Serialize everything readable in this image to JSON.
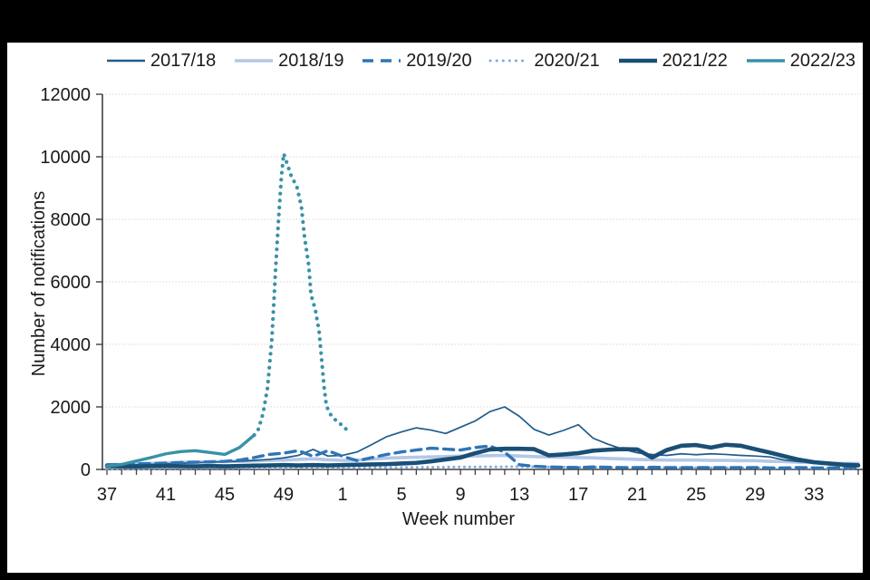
{
  "frame": {
    "color": "#000000"
  },
  "axes": {
    "y": {
      "title": "Number of notifications",
      "min": 0,
      "max": 12000,
      "step": 2000,
      "tick_labels": [
        "0",
        "2000",
        "4000",
        "6000",
        "8000",
        "10000",
        "12000"
      ]
    },
    "x": {
      "title": "Week number",
      "tick_labels": [
        "37",
        "41",
        "45",
        "49",
        "1",
        "5",
        "9",
        "13",
        "17",
        "21",
        "25",
        "29",
        "33"
      ]
    }
  },
  "chart_data": {
    "type": "line",
    "title": "",
    "xlabel": "Week number",
    "ylabel": "Number of notifications",
    "ylim": [
      0,
      12000
    ],
    "grid": "horizontal-dotted",
    "legend_position": "top",
    "x_weeks": [
      37,
      38,
      39,
      40,
      41,
      42,
      43,
      44,
      45,
      46,
      47,
      48,
      49,
      50,
      51,
      52,
      1,
      2,
      3,
      4,
      5,
      6,
      7,
      8,
      9,
      10,
      11,
      12,
      13,
      14,
      15,
      16,
      17,
      18,
      19,
      20,
      21,
      22,
      23,
      24,
      25,
      26,
      27,
      28,
      29,
      30,
      31,
      32,
      33,
      34,
      35,
      36
    ],
    "series": [
      {
        "name": "2017/18",
        "color": "#1f5c8b",
        "style": "solid",
        "width": 1.7,
        "values": [
          130,
          140,
          150,
          160,
          180,
          200,
          210,
          230,
          250,
          260,
          290,
          320,
          370,
          450,
          640,
          430,
          450,
          560,
          800,
          1050,
          1200,
          1330,
          1260,
          1150,
          1350,
          1550,
          1850,
          2000,
          1700,
          1280,
          1100,
          1250,
          1430,
          1000,
          810,
          650,
          530,
          480,
          450,
          500,
          470,
          500,
          480,
          450,
          430,
          400,
          300,
          250,
          220,
          200,
          190,
          180
        ]
      },
      {
        "name": "2018/19",
        "color": "#b4c7e7",
        "style": "solid",
        "width": 3.6,
        "values": [
          140,
          150,
          170,
          190,
          210,
          230,
          240,
          250,
          250,
          260,
          270,
          290,
          300,
          320,
          340,
          310,
          290,
          300,
          330,
          360,
          380,
          390,
          400,
          410,
          430,
          430,
          440,
          450,
          430,
          410,
          400,
          390,
          380,
          370,
          350,
          340,
          320,
          310,
          300,
          300,
          300,
          290,
          290,
          280,
          280,
          260,
          250,
          230,
          220,
          200,
          190,
          190
        ]
      },
      {
        "name": "2019/20",
        "color": "#2e75b6",
        "style": "dashed",
        "width": 3.4,
        "values": [
          150,
          160,
          180,
          190,
          200,
          220,
          230,
          240,
          260,
          300,
          380,
          480,
          520,
          600,
          420,
          600,
          420,
          280,
          380,
          480,
          560,
          620,
          680,
          650,
          620,
          700,
          750,
          550,
          150,
          100,
          80,
          70,
          60,
          80,
          70,
          60,
          60,
          70,
          60,
          60,
          60,
          60,
          60,
          60,
          60,
          50,
          50,
          60,
          50,
          50,
          50,
          60
        ]
      },
      {
        "name": "2020/21",
        "color": "#82abdd",
        "style": "dotted",
        "width": 3,
        "values": [
          25,
          25,
          30,
          30,
          35,
          35,
          40,
          40,
          40,
          40,
          45,
          45,
          45,
          50,
          50,
          50,
          50,
          55,
          60,
          60,
          65,
          70,
          70,
          75,
          80,
          80,
          85,
          85,
          90,
          85,
          80,
          75,
          70,
          70,
          65,
          65,
          60,
          60,
          60,
          55,
          55,
          55,
          50,
          50,
          50,
          45,
          45,
          40,
          40,
          35,
          35,
          30
        ]
      },
      {
        "name": "2021/22",
        "color": "#1a4f75",
        "style": "solid",
        "width": 4.6,
        "values": [
          110,
          100,
          95,
          105,
          115,
          105,
          100,
          110,
          100,
          110,
          120,
          130,
          140,
          130,
          140,
          130,
          140,
          150,
          160,
          170,
          190,
          210,
          260,
          320,
          380,
          520,
          640,
          660,
          660,
          650,
          450,
          480,
          520,
          600,
          630,
          650,
          640,
          380,
          620,
          760,
          780,
          700,
          790,
          760,
          650,
          540,
          420,
          310,
          230,
          190,
          150,
          130
        ]
      },
      {
        "name": "2022/23",
        "color": "#3892a7",
        "style": "solid",
        "width": 3.4,
        "values": [
          110,
          160,
          270,
          380,
          500,
          570,
          600,
          540,
          480,
          700,
          1100,
          null,
          null,
          null,
          null,
          null,
          null,
          null,
          null,
          null,
          null,
          null,
          null,
          null,
          null,
          null,
          null,
          null,
          null,
          null,
          null,
          null,
          null,
          null,
          null,
          null,
          null,
          null,
          null,
          null,
          null,
          null,
          null,
          null,
          null,
          null,
          null,
          null,
          null,
          null,
          null,
          null
        ],
        "dotted_extension": [
          [
            10,
            1100
          ],
          [
            10.3,
            1300
          ],
          [
            10.6,
            1800
          ],
          [
            10.9,
            2600
          ],
          [
            11.2,
            4200
          ],
          [
            11.45,
            6400
          ],
          [
            11.65,
            8000
          ],
          [
            11.85,
            9400
          ],
          [
            12,
            10100
          ],
          [
            12.5,
            9400
          ],
          [
            12.9,
            9030
          ],
          [
            13.2,
            8410
          ],
          [
            13.4,
            7480
          ],
          [
            13.7,
            6520
          ],
          [
            13.85,
            5600
          ],
          [
            14.15,
            5100
          ],
          [
            14.4,
            4430
          ],
          [
            14.75,
            2600
          ],
          [
            14.9,
            2030
          ],
          [
            15.2,
            1740
          ],
          [
            15.5,
            1590
          ],
          [
            15.8,
            1480
          ],
          [
            16.1,
            1330
          ],
          [
            16.6,
            1190
          ]
        ]
      }
    ]
  }
}
